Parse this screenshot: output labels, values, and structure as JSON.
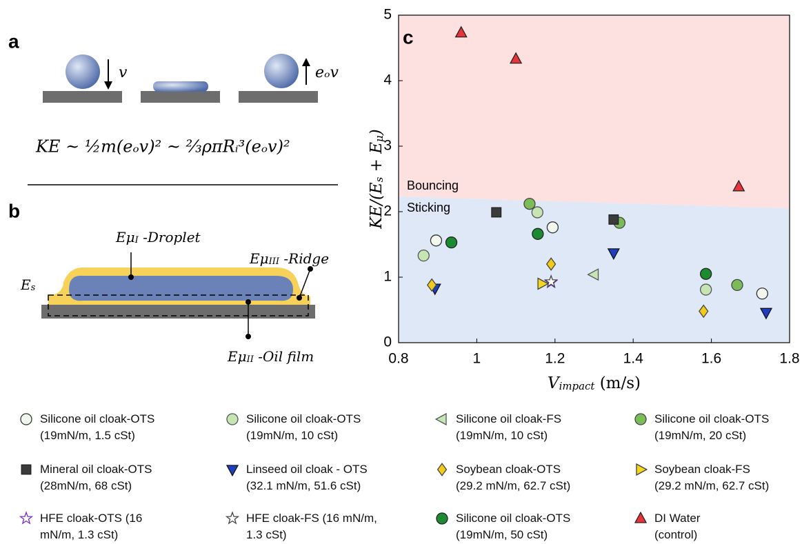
{
  "panel_a": {
    "label": "a",
    "down_label": "v",
    "up_label": "eₒv",
    "equation": "KE ~ ½m(eₒv)² ~ ⅔ρπRᵢ³(eₒv)²"
  },
  "panel_b": {
    "label": "b",
    "droplet": [
      {
        "t": "Eμ"
      },
      {
        "t": "I",
        "sub": true
      },
      {
        "t": " -Droplet"
      }
    ],
    "ridge": [
      {
        "t": "Eμ"
      },
      {
        "t": "III",
        "sub": true
      },
      {
        "t": " -Ridge"
      }
    ],
    "surface": [
      {
        "t": "E"
      },
      {
        "t": "s",
        "sub": true
      }
    ],
    "film": [
      {
        "t": "Eμ"
      },
      {
        "t": "II",
        "sub": true
      },
      {
        "t": " -Oil film"
      }
    ]
  },
  "chart_data": {
    "type": "scatter",
    "panel_label": "c",
    "xlabel": [
      {
        "t": "V"
      },
      {
        "t": "impact",
        "sub": true
      },
      {
        "t": " (m/s)",
        "plain": true
      }
    ],
    "ylabel": [
      {
        "t": "KE/(E"
      },
      {
        "t": "s",
        "sub": true
      },
      {
        "t": " + E"
      },
      {
        "t": "μ",
        "sub": true
      },
      {
        "t": ")"
      }
    ],
    "xlim": [
      0.8,
      1.8
    ],
    "xticks": [
      0.8,
      1,
      1.2,
      1.4,
      1.6,
      1.8
    ],
    "ylim": [
      0,
      5
    ],
    "yticks": [
      0,
      1,
      2,
      3,
      4,
      5
    ],
    "regions": {
      "upper_label": "Bouncing",
      "lower_label": "Sticking",
      "upper_color": "#fde1e1",
      "lower_color": "#dfe8f7",
      "boundary_x": [
        0.8,
        1.8
      ],
      "boundary_y": [
        2.23,
        2.05
      ]
    },
    "series": [
      {
        "name": "Silicone oil cloak-OTS\n(19mN/m, 1.5 cSt)",
        "marker": "circle",
        "color": "#f3f8ee",
        "edgecolor": "#333",
        "x": [
          0.896,
          1.194,
          1.73
        ],
        "values": [
          1.56,
          1.76,
          0.75
        ]
      },
      {
        "name": "Silicone oil cloak-OTS\n(19mN/m, 10 cSt)",
        "marker": "circle",
        "color": "#c6e5b2",
        "edgecolor": "#555",
        "x": [
          0.864,
          1.155,
          1.586
        ],
        "values": [
          1.33,
          1.99,
          0.81
        ]
      },
      {
        "name": "Silicone oil cloak-FS\n(19mN/m, 10 cSt)",
        "marker": "triangle-left",
        "color": "#c6e5b2",
        "edgecolor": "#555",
        "x": [
          1.3
        ],
        "values": [
          1.04
        ]
      },
      {
        "name": "Silicone oil cloak-OTS\n(19mN/m, 20 cSt)",
        "marker": "circle",
        "color": "#7cbc58",
        "edgecolor": "#444",
        "x": [
          1.135,
          1.365,
          1.666
        ],
        "values": [
          2.12,
          1.83,
          0.88
        ]
      },
      {
        "name": "Mineral oil cloak-OTS\n(28mN/m, 68 cSt)",
        "marker": "square",
        "color": "#3b3b3b",
        "edgecolor": "#222",
        "x": [
          1.05,
          1.35
        ],
        "values": [
          1.99,
          1.88
        ]
      },
      {
        "name": "Linseed oil cloak - OTS\n(32.1 mN/m, 51.6 cSt)",
        "marker": "triangle-down",
        "color": "#1e3fbf",
        "edgecolor": "#111",
        "x": [
          0.893,
          1.35,
          1.74
        ],
        "values": [
          0.83,
          1.37,
          0.46
        ]
      },
      {
        "name": "Soybean cloak-OTS\n(29.2 mN/m, 62.7 cSt)",
        "marker": "diamond",
        "color": "#f2cb1a",
        "edgecolor": "#444",
        "x": [
          0.885,
          1.19,
          1.58
        ],
        "values": [
          0.88,
          1.2,
          0.48
        ]
      },
      {
        "name": "Soybean cloak-FS\n(29.2 mN/m, 62.7 cSt)",
        "marker": "triangle-right",
        "color": "#f5d61e",
        "edgecolor": "#444",
        "x": [
          1.167
        ],
        "values": [
          0.9
        ]
      },
      {
        "name": "HFE cloak-OTS (16\nmN/m, 1.3 cSt)",
        "marker": "star",
        "color": "#ffffff",
        "edgecolor": "#7a2ccf",
        "x": [
          1.19
        ],
        "values": [
          0.92
        ]
      },
      {
        "name": "HFE cloak-FS (16 mN/m,\n1.3 cSt)",
        "marker": "star",
        "color": "#ffffff",
        "edgecolor": "#444",
        "x": [
          1.19
        ],
        "values": [
          0.93
        ]
      },
      {
        "name": "Silicone oil cloak-OTS\n(19mN/m, 50 cSt)",
        "marker": "circle",
        "color": "#1b8a30",
        "edgecolor": "#222",
        "x": [
          0.935,
          1.156,
          1.586
        ],
        "values": [
          1.53,
          1.66,
          1.05
        ]
      },
      {
        "name": "DI Water\n(control)",
        "marker": "triangle-up",
        "color": "#e8333b",
        "edgecolor": "#222",
        "x": [
          0.96,
          1.1,
          1.67
        ],
        "values": [
          4.73,
          4.33,
          2.38
        ]
      }
    ]
  }
}
